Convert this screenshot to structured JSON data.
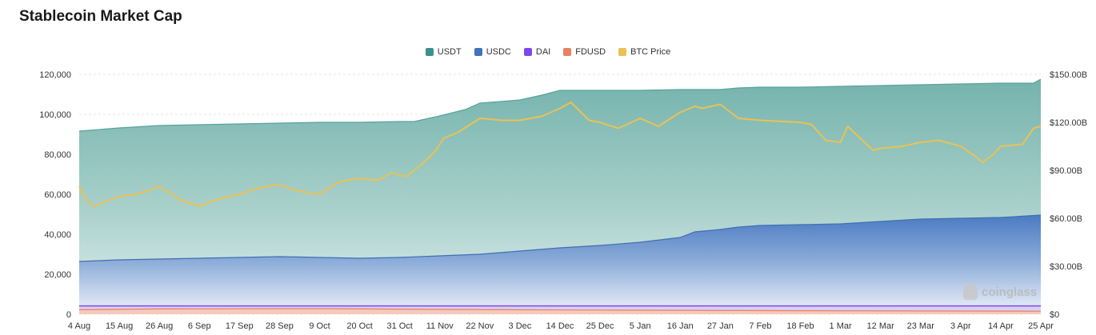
{
  "title": "Stablecoin Market Cap",
  "watermark": "coinglass",
  "legend": [
    {
      "label": "USDT",
      "color": "#3a9190"
    },
    {
      "label": "USDC",
      "color": "#4472b8"
    },
    {
      "label": "DAI",
      "color": "#7b4ae8"
    },
    {
      "label": "FDUSD",
      "color": "#e98062"
    },
    {
      "label": "BTC Price",
      "color": "#e9c253"
    }
  ],
  "chart_data": {
    "type": "area",
    "title": "Stablecoin Market Cap",
    "x_ticks": [
      "4 Aug",
      "15 Aug",
      "26 Aug",
      "6 Sep",
      "17 Sep",
      "28 Sep",
      "9 Oct",
      "20 Oct",
      "31 Oct",
      "11 Nov",
      "22 Nov",
      "3 Dec",
      "14 Dec",
      "25 Dec",
      "5 Jan",
      "16 Jan",
      "27 Jan",
      "7 Feb",
      "18 Feb",
      "1 Mar",
      "12 Mar",
      "23 Mar",
      "3 Apr",
      "14 Apr",
      "25 Apr"
    ],
    "left_axis": {
      "ticks": [
        "0",
        "20,000",
        "40,000",
        "60,000",
        "80,000",
        "100,000",
        "120,000"
      ],
      "ylim": [
        0,
        120000
      ],
      "series": "BTC Price"
    },
    "right_axis": {
      "ticks": [
        "$0",
        "$30.00B",
        "$60.00B",
        "$90.00B",
        "$120.00B",
        "$150.00B"
      ],
      "ylim": [
        0,
        150
      ],
      "unit": "B USD",
      "series": "stacked market caps"
    },
    "grid": "horizontal dashed",
    "legend_position": "top-center",
    "series": [
      {
        "name": "USDT",
        "axis": "right",
        "stacked_top": true,
        "x": [
          "4 Aug",
          "15 Aug",
          "26 Aug",
          "6 Sep",
          "17 Sep",
          "28 Sep",
          "9 Oct",
          "20 Oct",
          "31 Oct",
          "4 Nov",
          "11 Nov",
          "18 Nov",
          "22 Nov",
          "3 Dec",
          "9 Dec",
          "14 Dec",
          "25 Dec",
          "5 Jan",
          "16 Jan",
          "27 Jan",
          "1 Feb",
          "7 Feb",
          "18 Feb",
          "1 Mar",
          "12 Mar",
          "23 Mar",
          "3 Apr",
          "14 Apr",
          "23 Apr",
          "25 Apr"
        ],
        "values": [
          114.5,
          116.5,
          118.0,
          118.5,
          119.0,
          119.5,
          120.0,
          120.0,
          120.5,
          120.5,
          124,
          128,
          132,
          134,
          137,
          140,
          140,
          140,
          140.5,
          140.5,
          141.5,
          142,
          142,
          142.5,
          143,
          143.5,
          144,
          144.5,
          144.5,
          147
        ]
      },
      {
        "name": "USDC",
        "axis": "right",
        "x": [
          "4 Aug",
          "15 Aug",
          "26 Aug",
          "6 Sep",
          "17 Sep",
          "28 Sep",
          "9 Oct",
          "20 Oct",
          "31 Oct",
          "11 Nov",
          "22 Nov",
          "3 Dec",
          "14 Dec",
          "25 Dec",
          "5 Jan",
          "16 Jan",
          "20 Jan",
          "27 Jan",
          "1 Feb",
          "7 Feb",
          "18 Feb",
          "1 Mar",
          "12 Mar",
          "23 Mar",
          "3 Apr",
          "14 Apr",
          "25 Apr"
        ],
        "values": [
          33.0,
          34.0,
          34.5,
          35.0,
          35.5,
          36.0,
          35.5,
          35.0,
          35.5,
          36.5,
          37.5,
          39.5,
          41.5,
          43.0,
          45.0,
          48.0,
          51.5,
          53.0,
          54.5,
          55.5,
          56.0,
          56.5,
          58.0,
          59.5,
          60.0,
          60.5,
          62.0
        ]
      },
      {
        "name": "DAI",
        "axis": "right",
        "x": [
          "4 Aug",
          "25 Apr"
        ],
        "values": [
          5.2,
          5.2
        ]
      },
      {
        "name": "FDUSD",
        "axis": "right",
        "x": [
          "4 Aug",
          "26 Aug",
          "9 Oct",
          "11 Nov",
          "25 Dec",
          "18 Feb",
          "25 Apr"
        ],
        "values": [
          2.8,
          3.3,
          3.5,
          3.0,
          2.6,
          2.2,
          1.9
        ]
      },
      {
        "name": "BTC Price",
        "axis": "left",
        "x": [
          "4 Aug",
          "6 Aug",
          "8 Aug",
          "15 Aug",
          "20 Aug",
          "26 Aug",
          "1 Sep",
          "6 Sep",
          "10 Sep",
          "17 Sep",
          "22 Sep",
          "28 Sep",
          "2 Oct",
          "9 Oct",
          "14 Oct",
          "20 Oct",
          "25 Oct",
          "29 Oct",
          "31 Oct",
          "2 Nov",
          "6 Nov",
          "10 Nov",
          "12 Nov",
          "16 Nov",
          "22 Nov",
          "28 Nov",
          "3 Dec",
          "9 Dec",
          "14 Dec",
          "17 Dec",
          "22 Dec",
          "25 Dec",
          "30 Dec",
          "5 Jan",
          "10 Jan",
          "16 Jan",
          "20 Jan",
          "22 Jan",
          "27 Jan",
          "1 Feb",
          "7 Feb",
          "18 Feb",
          "21 Feb",
          "25 Feb",
          "1 Mar",
          "3 Mar",
          "7 Mar",
          "10 Mar",
          "12 Mar",
          "18 Mar",
          "23 Mar",
          "28 Mar",
          "3 Apr",
          "7 Apr",
          "9 Apr",
          "12 Apr",
          "14 Apr",
          "20 Apr",
          "23 Apr",
          "25 Apr"
        ],
        "values": [
          64000,
          57000,
          54000,
          59000,
          60000,
          64000,
          57000,
          54000,
          57000,
          60000,
          63000,
          65000,
          62000,
          60000,
          66000,
          68000,
          67000,
          71000,
          69500,
          69000,
          75000,
          82000,
          88000,
          91000,
          98000,
          97000,
          97000,
          99000,
          103000,
          106000,
          97000,
          96000,
          93000,
          98000,
          94000,
          101000,
          104000,
          103000,
          105000,
          98000,
          97000,
          96000,
          95000,
          87000,
          86000,
          94000,
          87000,
          82000,
          83000,
          84000,
          86000,
          87000,
          84000,
          79000,
          76000,
          80000,
          84000,
          85000,
          93000,
          94000
        ]
      }
    ]
  }
}
